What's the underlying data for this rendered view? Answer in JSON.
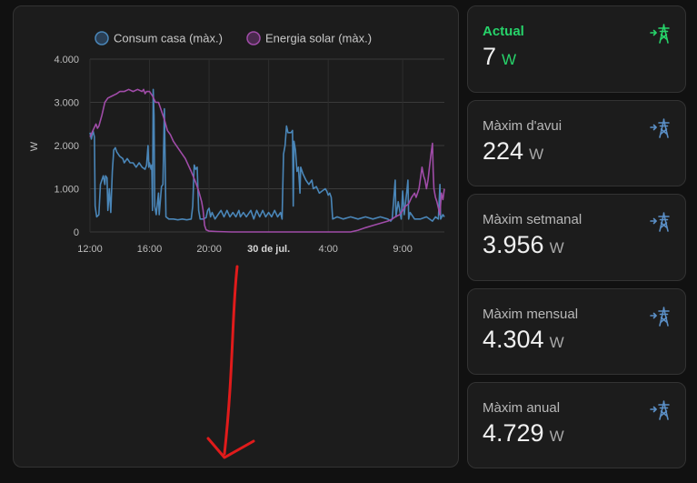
{
  "chart_data": {
    "type": "line",
    "legend": [
      {
        "name": "Consum casa (màx.)",
        "color": "#4a86b8"
      },
      {
        "name": "Energia solar (màx.)",
        "color": "#a04ca8"
      }
    ],
    "ylabel": "W",
    "ylim": [
      0,
      4000
    ],
    "yticks": [
      "4.000",
      "3.000",
      "2.000",
      "1.000",
      "0"
    ],
    "ytick_values": [
      4000,
      3000,
      2000,
      1000,
      0
    ],
    "xlim": [
      0,
      23.8
    ],
    "xticks": [
      {
        "label": "12:00",
        "value": 0,
        "bold": false
      },
      {
        "label": "16:00",
        "value": 4,
        "bold": false
      },
      {
        "label": "20:00",
        "value": 8,
        "bold": false
      },
      {
        "label": "30 de jul.",
        "value": 12,
        "bold": true
      },
      {
        "label": "4:00",
        "value": 16,
        "bold": false
      },
      {
        "label": "9:00",
        "value": 21,
        "bold": false
      }
    ],
    "grid": true,
    "series": [
      {
        "name": "Consum casa (màx.)",
        "color": "#4a86b8",
        "points": [
          [
            0,
            2300
          ],
          [
            0.1,
            2150
          ],
          [
            0.2,
            2350
          ],
          [
            0.3,
            2200
          ],
          [
            0.35,
            600
          ],
          [
            0.45,
            350
          ],
          [
            0.6,
            400
          ],
          [
            0.7,
            1100
          ],
          [
            0.8,
            1200
          ],
          [
            0.9,
            1300
          ],
          [
            1.0,
            1100
          ],
          [
            1.05,
            1300
          ],
          [
            1.15,
            1250
          ],
          [
            1.2,
            500
          ],
          [
            1.3,
            1000
          ],
          [
            1.4,
            450
          ],
          [
            1.5,
            1400
          ],
          [
            1.6,
            1900
          ],
          [
            1.7,
            1950
          ],
          [
            1.8,
            1850
          ],
          [
            2.0,
            1750
          ],
          [
            2.2,
            1700
          ],
          [
            2.3,
            1600
          ],
          [
            2.5,
            1700
          ],
          [
            2.7,
            1600
          ],
          [
            2.9,
            1600
          ],
          [
            3.1,
            1500
          ],
          [
            3.3,
            1600
          ],
          [
            3.5,
            1500
          ],
          [
            3.7,
            1450
          ],
          [
            3.8,
            1550
          ],
          [
            3.9,
            2000
          ],
          [
            3.95,
            1500
          ],
          [
            4.0,
            1600
          ],
          [
            4.1,
            1450
          ],
          [
            4.15,
            1550
          ],
          [
            4.2,
            500
          ],
          [
            4.25,
            3300
          ],
          [
            4.3,
            2700
          ],
          [
            4.35,
            600
          ],
          [
            4.45,
            400
          ],
          [
            4.6,
            900
          ],
          [
            4.65,
            400
          ],
          [
            4.8,
            1050
          ],
          [
            4.9,
            1100
          ],
          [
            5.0,
            2850
          ],
          [
            5.1,
            350
          ],
          [
            5.3,
            300
          ],
          [
            5.6,
            300
          ],
          [
            5.9,
            280
          ],
          [
            6.2,
            300
          ],
          [
            6.5,
            280
          ],
          [
            6.8,
            300
          ],
          [
            6.9,
            600
          ],
          [
            7.0,
            1550
          ],
          [
            7.1,
            1450
          ],
          [
            7.2,
            1500
          ],
          [
            7.3,
            500
          ],
          [
            7.4,
            300
          ],
          [
            7.6,
            300
          ],
          [
            7.8,
            330
          ],
          [
            7.9,
            500
          ],
          [
            8.0,
            550
          ],
          [
            8.1,
            350
          ],
          [
            8.2,
            450
          ],
          [
            8.4,
            300
          ],
          [
            8.6,
            400
          ],
          [
            8.8,
            500
          ],
          [
            9.0,
            350
          ],
          [
            9.2,
            500
          ],
          [
            9.4,
            350
          ],
          [
            9.6,
            450
          ],
          [
            9.8,
            350
          ],
          [
            10.0,
            500
          ],
          [
            10.1,
            350
          ],
          [
            10.3,
            450
          ],
          [
            10.5,
            350
          ],
          [
            10.8,
            500
          ],
          [
            11.0,
            300
          ],
          [
            11.2,
            500
          ],
          [
            11.4,
            350
          ],
          [
            11.6,
            500
          ],
          [
            11.8,
            350
          ],
          [
            12.0,
            450
          ],
          [
            12.2,
            350
          ],
          [
            12.4,
            500
          ],
          [
            12.6,
            350
          ],
          [
            12.8,
            450
          ],
          [
            12.9,
            300
          ],
          [
            13.0,
            1800
          ],
          [
            13.1,
            2000
          ],
          [
            13.2,
            2450
          ],
          [
            13.3,
            2300
          ],
          [
            13.5,
            2300
          ],
          [
            13.6,
            2350
          ],
          [
            13.65,
            600
          ],
          [
            13.7,
            2100
          ],
          [
            13.8,
            1900
          ],
          [
            13.9,
            1400
          ],
          [
            14.0,
            1500
          ],
          [
            14.1,
            900
          ],
          [
            14.15,
            1500
          ],
          [
            14.3,
            1350
          ],
          [
            14.5,
            1200
          ],
          [
            14.7,
            1100
          ],
          [
            14.9,
            1200
          ],
          [
            15.0,
            1000
          ],
          [
            15.2,
            1050
          ],
          [
            15.4,
            900
          ],
          [
            15.6,
            950
          ],
          [
            15.8,
            1000
          ],
          [
            15.9,
            950
          ],
          [
            16.0,
            850
          ],
          [
            16.1,
            900
          ],
          [
            16.2,
            800
          ],
          [
            16.3,
            300
          ],
          [
            16.6,
            350
          ],
          [
            17.0,
            300
          ],
          [
            17.5,
            350
          ],
          [
            18.0,
            300
          ],
          [
            18.5,
            350
          ],
          [
            19.0,
            300
          ],
          [
            19.5,
            350
          ],
          [
            20.0,
            300
          ],
          [
            20.2,
            250
          ],
          [
            20.3,
            300
          ],
          [
            20.5,
            1200
          ],
          [
            20.55,
            350
          ],
          [
            20.7,
            700
          ],
          [
            20.9,
            300
          ],
          [
            21.0,
            950
          ],
          [
            21.1,
            400
          ],
          [
            21.2,
            700
          ],
          [
            21.3,
            1000
          ],
          [
            21.35,
            1200
          ],
          [
            21.4,
            300
          ],
          [
            21.5,
            450
          ],
          [
            21.8,
            300
          ],
          [
            22.2,
            300
          ],
          [
            22.6,
            350
          ],
          [
            23.0,
            250
          ],
          [
            23.2,
            350
          ],
          [
            23.4,
            300
          ],
          [
            23.5,
            1100
          ],
          [
            23.55,
            300
          ],
          [
            23.7,
            400
          ],
          [
            23.8,
            350
          ]
        ]
      },
      {
        "name": "Energia solar (màx.)",
        "color": "#a04ca8",
        "points": [
          [
            0,
            2200
          ],
          [
            0.2,
            2350
          ],
          [
            0.4,
            2500
          ],
          [
            0.5,
            2400
          ],
          [
            0.6,
            2450
          ],
          [
            0.8,
            2700
          ],
          [
            1.0,
            3000
          ],
          [
            1.2,
            3100
          ],
          [
            1.5,
            3150
          ],
          [
            1.8,
            3200
          ],
          [
            2.0,
            3250
          ],
          [
            2.3,
            3250
          ],
          [
            2.6,
            3300
          ],
          [
            2.9,
            3250
          ],
          [
            3.2,
            3300
          ],
          [
            3.5,
            3250
          ],
          [
            3.6,
            3300
          ],
          [
            3.7,
            3200
          ],
          [
            3.8,
            3250
          ],
          [
            4.0,
            3250
          ],
          [
            4.2,
            3150
          ],
          [
            4.4,
            3000
          ],
          [
            4.6,
            3000
          ],
          [
            4.8,
            2800
          ],
          [
            5.0,
            2600
          ],
          [
            5.2,
            2350
          ],
          [
            5.4,
            2250
          ],
          [
            5.6,
            2100
          ],
          [
            6.0,
            1900
          ],
          [
            6.4,
            1700
          ],
          [
            6.8,
            1400
          ],
          [
            7.1,
            1150
          ],
          [
            7.3,
            950
          ],
          [
            7.5,
            700
          ],
          [
            7.6,
            500
          ],
          [
            7.7,
            150
          ],
          [
            7.8,
            50
          ],
          [
            8.0,
            20
          ],
          [
            8.5,
            10
          ],
          [
            9.5,
            0
          ],
          [
            12,
            0
          ],
          [
            15,
            0
          ],
          [
            17,
            0
          ],
          [
            17.5,
            0
          ],
          [
            18.0,
            40
          ],
          [
            18.5,
            100
          ],
          [
            19.0,
            150
          ],
          [
            19.5,
            200
          ],
          [
            20.0,
            250
          ],
          [
            20.3,
            300
          ],
          [
            20.5,
            350
          ],
          [
            20.8,
            400
          ],
          [
            21.0,
            500
          ],
          [
            21.2,
            600
          ],
          [
            21.4,
            650
          ],
          [
            21.6,
            800
          ],
          [
            21.8,
            900
          ],
          [
            21.9,
            800
          ],
          [
            22.1,
            1000
          ],
          [
            22.3,
            1500
          ],
          [
            22.4,
            1300
          ],
          [
            22.5,
            1200
          ],
          [
            22.6,
            1000
          ],
          [
            22.7,
            1200
          ],
          [
            22.8,
            1500
          ],
          [
            22.9,
            1800
          ],
          [
            23.0,
            2050
          ],
          [
            23.05,
            1400
          ],
          [
            23.1,
            1000
          ],
          [
            23.2,
            800
          ],
          [
            23.3,
            700
          ],
          [
            23.5,
            400
          ],
          [
            23.6,
            900
          ],
          [
            23.7,
            750
          ],
          [
            23.8,
            1000
          ]
        ]
      }
    ]
  },
  "cards": [
    {
      "label": "Actual",
      "value": "7",
      "unit": "W",
      "icon": "power-transmission-tower-import-icon",
      "accent": true
    },
    {
      "label": "Màxim d'avui",
      "value": "224",
      "unit": "W",
      "icon": "power-transmission-tower-import-icon",
      "accent": false
    },
    {
      "label": "Màxim setmanal",
      "value": "3.956",
      "unit": "W",
      "icon": "power-transmission-tower-import-icon",
      "accent": false
    },
    {
      "label": "Màxim mensual",
      "value": "4.304",
      "unit": "W",
      "icon": "power-transmission-tower-import-icon",
      "accent": false
    },
    {
      "label": "Màxim anual",
      "value": "4.729",
      "unit": "W",
      "icon": "power-transmission-tower-import-icon",
      "accent": false
    }
  ],
  "colors": {
    "accent": "#27d36a",
    "icon": "#5b8fc6",
    "annotation": "#e01b1b"
  }
}
